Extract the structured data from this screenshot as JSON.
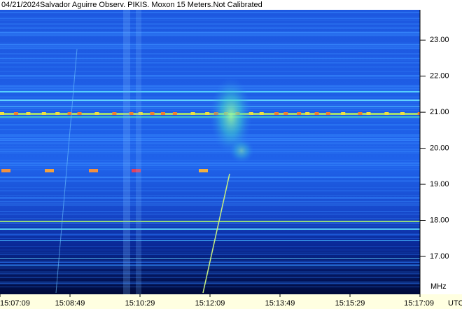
{
  "chart_data": {
    "type": "spectrogram",
    "title": "04/21/2024Salvador Aguirre Observ. PIKIS. Moxon 15 Meters.Not Calibrated",
    "y_label": "MHz",
    "x_label": "UTC",
    "ylim": [
      15.95,
      23.84
    ],
    "yticks": [
      {
        "value": 17,
        "label": "17.00"
      },
      {
        "value": 18,
        "label": "18.00"
      },
      {
        "value": 19,
        "label": "19.00"
      },
      {
        "value": 20,
        "label": "20.00"
      },
      {
        "value": 21,
        "label": "21.00"
      },
      {
        "value": 22,
        "label": "22.00"
      },
      {
        "value": 23,
        "label": "23.00"
      }
    ],
    "xticks": [
      "15:07:09",
      "15:08:49",
      "15:10:29",
      "15:12:09",
      "15:13:49",
      "15:15:29",
      "15:17:09"
    ]
  }
}
